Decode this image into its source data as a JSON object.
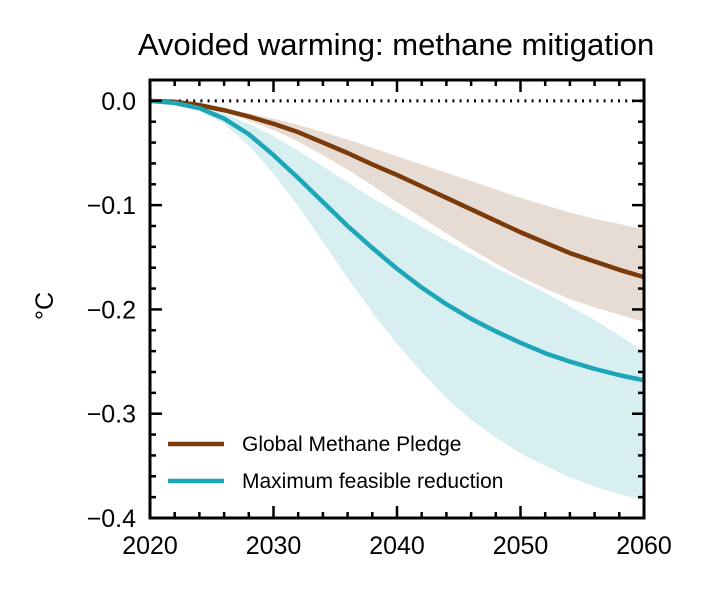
{
  "chart_data": {
    "type": "line",
    "title": "Avoided warming: methane mitigation",
    "xlabel": "",
    "ylabel": "°C",
    "xlim": [
      2020,
      2060
    ],
    "ylim": [
      -0.4,
      0.02
    ],
    "x_ticks": [
      2020,
      2030,
      2040,
      2050,
      2060
    ],
    "x_tick_labels": [
      "2020",
      "2030",
      "2040",
      "2050",
      "2060"
    ],
    "y_ticks": [
      0.0,
      -0.1,
      -0.2,
      -0.3,
      -0.4
    ],
    "y_tick_labels": [
      "0.0",
      "−0.1",
      "−0.2",
      "−0.3",
      "−0.4"
    ],
    "reference_line": {
      "y": 0,
      "style": "dotted",
      "color": "#000000"
    },
    "legend_position": "lower-left",
    "grid": false,
    "series": [
      {
        "name": "Global Methane Pledge",
        "color": "#7a3a0a",
        "band_color": "#e3d6cb",
        "x": [
          2020,
          2022,
          2024,
          2026,
          2028,
          2030,
          2032,
          2034,
          2036,
          2038,
          2040,
          2042,
          2044,
          2046,
          2048,
          2050,
          2052,
          2054,
          2056,
          2058,
          2060
        ],
        "y": [
          0.0,
          -0.001,
          -0.004,
          -0.009,
          -0.015,
          -0.022,
          -0.03,
          -0.04,
          -0.05,
          -0.061,
          -0.071,
          -0.082,
          -0.093,
          -0.104,
          -0.115,
          -0.126,
          -0.136,
          -0.146,
          -0.154,
          -0.162,
          -0.169
        ],
        "lower": [
          0.0,
          -0.001,
          -0.005,
          -0.011,
          -0.019,
          -0.028,
          -0.039,
          -0.052,
          -0.066,
          -0.081,
          -0.097,
          -0.112,
          -0.127,
          -0.142,
          -0.156,
          -0.169,
          -0.18,
          -0.19,
          -0.198,
          -0.205,
          -0.212
        ],
        "upper": [
          0.0,
          -0.001,
          -0.003,
          -0.007,
          -0.012,
          -0.017,
          -0.023,
          -0.03,
          -0.037,
          -0.045,
          -0.053,
          -0.061,
          -0.069,
          -0.077,
          -0.085,
          -0.093,
          -0.1,
          -0.107,
          -0.113,
          -0.118,
          -0.123
        ]
      },
      {
        "name": "Maximum feasible reduction",
        "color": "#1ca6b8",
        "band_color": "#d0ecef",
        "x": [
          2020,
          2022,
          2024,
          2026,
          2028,
          2030,
          2032,
          2034,
          2036,
          2038,
          2040,
          2042,
          2044,
          2046,
          2048,
          2050,
          2052,
          2054,
          2056,
          2058,
          2060
        ],
        "y": [
          0.0,
          -0.002,
          -0.007,
          -0.017,
          -0.032,
          -0.052,
          -0.074,
          -0.097,
          -0.12,
          -0.141,
          -0.161,
          -0.179,
          -0.195,
          -0.209,
          -0.221,
          -0.232,
          -0.242,
          -0.25,
          -0.257,
          -0.263,
          -0.268
        ],
        "lower": [
          0.0,
          -0.002,
          -0.009,
          -0.022,
          -0.043,
          -0.07,
          -0.101,
          -0.135,
          -0.17,
          -0.203,
          -0.233,
          -0.26,
          -0.285,
          -0.306,
          -0.323,
          -0.338,
          -0.35,
          -0.361,
          -0.37,
          -0.377,
          -0.383
        ],
        "upper": [
          0.0,
          -0.001,
          -0.005,
          -0.012,
          -0.022,
          -0.034,
          -0.048,
          -0.063,
          -0.078,
          -0.093,
          -0.107,
          -0.121,
          -0.134,
          -0.147,
          -0.16,
          -0.172,
          -0.184,
          -0.197,
          -0.21,
          -0.225,
          -0.24
        ]
      }
    ]
  }
}
